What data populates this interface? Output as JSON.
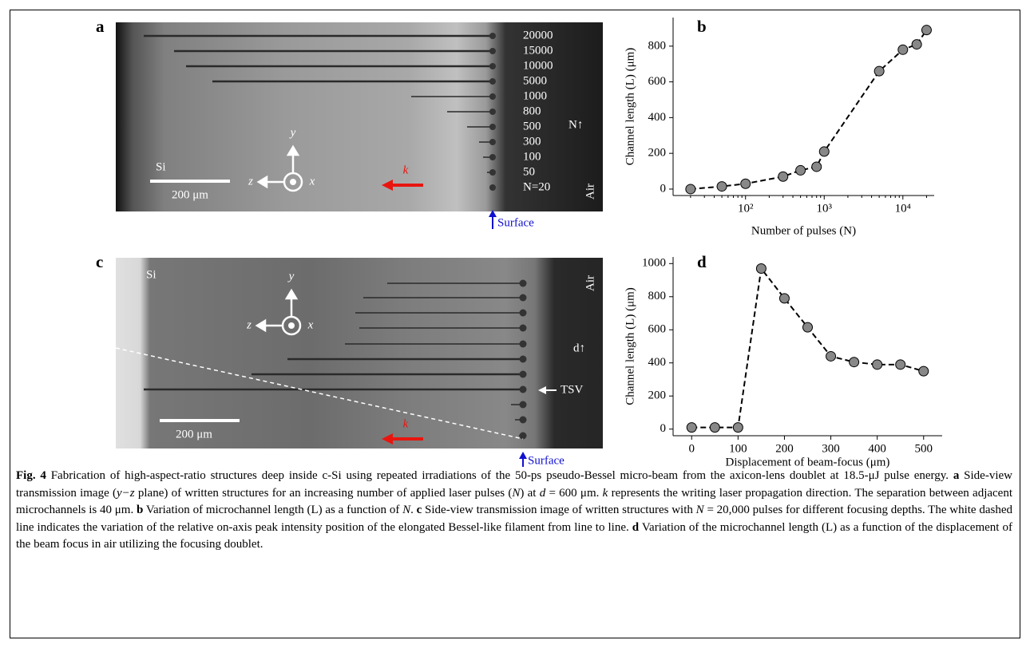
{
  "panel_a": {
    "letter": "a",
    "n_labels": [
      "20000",
      "15000",
      "10000",
      "5000",
      "1000",
      "800",
      "500",
      "300",
      "100",
      "50",
      "N=20"
    ],
    "n_arrow": "N↑",
    "air": "Air",
    "si": "Si",
    "scale": "200 μm",
    "axis_y": "y",
    "axis_z": "z",
    "axis_x": "x",
    "k": "k",
    "surface": "Surface"
  },
  "panel_c": {
    "letter": "c",
    "si": "Si",
    "air": "Air",
    "d_arrow": "d↑",
    "tsv": "TSV",
    "scale": "200 μm",
    "axis_y": "y",
    "axis_z": "z",
    "axis_x": "x",
    "k": "k",
    "surface": "Surface"
  },
  "chart_data": [
    {
      "type": "line",
      "panel": "b",
      "xlabel": "Number of pulses (N)",
      "ylabel": "Channel length (L) (μm)",
      "xscale": "log",
      "x": [
        20,
        50,
        100,
        300,
        500,
        800,
        1000,
        5000,
        10000,
        15000,
        20000
      ],
      "series": [
        {
          "color": "#888888",
          "line_color": "#000000",
          "values": [
            0,
            15,
            30,
            70,
            105,
            125,
            210,
            660,
            780,
            810,
            890
          ]
        }
      ],
      "xlim": [
        12,
        25000
      ],
      "xticks": [
        {
          "value": 100,
          "label": "10²"
        },
        {
          "value": 1000,
          "label": "10³"
        },
        {
          "value": 10000,
          "label": "10⁴"
        }
      ],
      "ylim": [
        -36,
        960
      ],
      "yticks": [
        0,
        200,
        400,
        600,
        800
      ]
    },
    {
      "type": "line",
      "panel": "d",
      "xlabel": "Displacement of beam-focus (μm)",
      "ylabel": "Channel length (L) (μm)",
      "xscale": "linear",
      "x": [
        0,
        50,
        100,
        150,
        200,
        250,
        300,
        350,
        400,
        450,
        500
      ],
      "series": [
        {
          "color": "#888888",
          "line_color": "#000000",
          "values": [
            10,
            10,
            10,
            970,
            790,
            615,
            440,
            405,
            390,
            390,
            350
          ]
        }
      ],
      "xlim": [
        -40,
        540
      ],
      "xticks": [
        0,
        100,
        200,
        300,
        400,
        500
      ],
      "ylim": [
        -40,
        1040
      ],
      "yticks": [
        0,
        200,
        400,
        600,
        800,
        1000
      ]
    }
  ],
  "caption": [
    {
      "text": "Fig. 4",
      "style": "bold"
    },
    {
      "text": " Fabrication of high-aspect-ratio structures deep inside c-Si using repeated irradiations of the 50-ps pseudo-Bessel micro-beam from the axicon-lens doublet at 18.5-μJ pulse energy. ",
      "style": "normal"
    },
    {
      "text": "a",
      "style": "bold"
    },
    {
      "text": " Side-view transmission image (",
      "style": "normal"
    },
    {
      "text": "y−z",
      "style": "italic"
    },
    {
      "text": " plane) of written structures for an increasing number of applied laser pulses (",
      "style": "normal"
    },
    {
      "text": "N",
      "style": "italic"
    },
    {
      "text": ") at ",
      "style": "normal"
    },
    {
      "text": "d",
      "style": "italic"
    },
    {
      "text": " = 600 μm. ",
      "style": "normal"
    },
    {
      "text": "k",
      "style": "italic"
    },
    {
      "text": " represents the writing laser propagation direction. The separation between adjacent microchannels is 40 μm. ",
      "style": "normal"
    },
    {
      "text": "b",
      "style": "bold"
    },
    {
      "text": " Variation of microchannel length (L) as a function of ",
      "style": "normal"
    },
    {
      "text": "N",
      "style": "italic"
    },
    {
      "text": ". ",
      "style": "normal"
    },
    {
      "text": "c",
      "style": "bold"
    },
    {
      "text": " Side-view transmission image of written structures with ",
      "style": "normal"
    },
    {
      "text": "N",
      "style": "italic"
    },
    {
      "text": " = 20,000 pulses for different focusing depths. The white dashed line indicates the variation of the relative on-axis peak intensity position of the elongated Bessel-like filament from line to line. ",
      "style": "normal"
    },
    {
      "text": "d",
      "style": "bold"
    },
    {
      "text": " Variation of the microchannel length (L) as a function of the displacement of the beam focus in air utilizing the focusing doublet.",
      "style": "normal"
    }
  ]
}
